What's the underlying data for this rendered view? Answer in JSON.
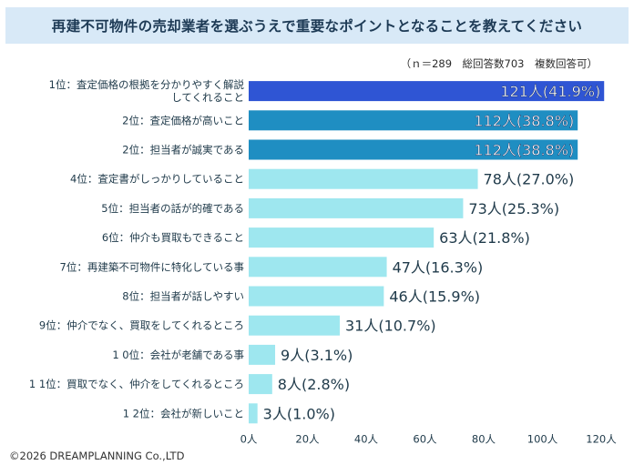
{
  "title": "再建不可物件の売却業者を選ぶうえで重要なポイントとなることを教えてください",
  "note": "（ｎ＝289　総回答数703　複数回答可）",
  "copyright": "©2026 DREAMPLANNING Co.,LTD",
  "colors": {
    "top1": "#2f55d4",
    "top3": "#1f8ec2",
    "rest": "#9ee7ef",
    "title_bg": "#d8e9f7"
  },
  "chart_data": {
    "type": "bar",
    "orientation": "horizontal",
    "categories": [
      [
        "1位：査定価格の根拠を分かりやすく解説",
        "してくれること"
      ],
      [
        "2位：査定価格が高いこと"
      ],
      [
        "2位：担当者が誠実である"
      ],
      [
        "4位：査定書がしっかりしていること"
      ],
      [
        "5位：担当者の話が的確である"
      ],
      [
        "6位：仲介も買取もできること"
      ],
      [
        "7位：再建築不可物件に特化している事"
      ],
      [
        "8位：担当者が話しやすい"
      ],
      [
        "9位：仲介でなく、買取をしてくれるところ"
      ],
      [
        "1 0位：会社が老舗である事"
      ],
      [
        "1 1位：買取でなく、仲介をしてくれるところ"
      ],
      [
        "1 2位：会社が新しいこと"
      ]
    ],
    "values": [
      121,
      112,
      112,
      78,
      73,
      63,
      47,
      46,
      31,
      9,
      8,
      3
    ],
    "value_labels": [
      "121人(41.9%)",
      "112人(38.8%)",
      "112人(38.8%)",
      "78人(27.0%)",
      "73人(25.3%)",
      "63人(21.8%)",
      "47人(16.3%)",
      "46人(15.9%)",
      "31人(10.7%)",
      "9人(3.1%)",
      "8人(2.8%)",
      "3人(1.0%)"
    ],
    "xlim": [
      0,
      120
    ],
    "xticks": [
      0,
      20,
      40,
      60,
      80,
      100,
      120
    ],
    "xtick_labels": [
      "0人",
      "20人",
      "40人",
      "60人",
      "80人",
      "100人",
      "120人"
    ],
    "grid": false,
    "legend": "none"
  }
}
